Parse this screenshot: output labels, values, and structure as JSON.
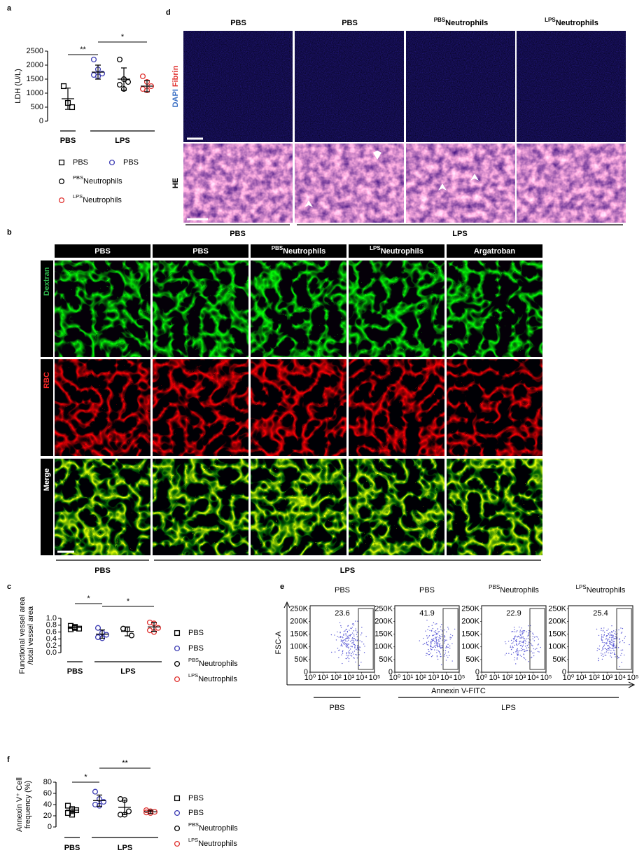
{
  "panel_labels": [
    "a",
    "b",
    "c",
    "d",
    "e",
    "f"
  ],
  "chart_data": [
    {
      "type": "dot",
      "ylabel": [
        "LDH (U/L)"
      ],
      "ylim": [
        0,
        2500
      ],
      "yticks": [
        0,
        500,
        1000,
        1500,
        2000,
        2500
      ],
      "series": [
        {
          "name": "PBS",
          "marker": "square",
          "color": "#000000",
          "values": [
            1250,
            650,
            500
          ],
          "mean": 800,
          "sd": 380
        },
        {
          "name": "PBS",
          "marker": "circle",
          "color": "#3b3bb3",
          "values": [
            2200,
            1850,
            1700,
            1650,
            1600
          ],
          "mean": 1750,
          "sd": 250
        },
        {
          "name": "Neutrophils",
          "name_superscript": "PBS",
          "marker": "circle",
          "color": "#000000",
          "values": [
            2200,
            1500,
            1400,
            1300,
            1150
          ],
          "mean": 1500,
          "sd": 400
        },
        {
          "name": "Neutrophils",
          "name_superscript": "LPS",
          "marker": "circle",
          "color": "#e0312f",
          "values": [
            1600,
            1400,
            1250,
            1150,
            1100
          ],
          "mean": 1250,
          "sd": 200
        }
      ],
      "groups": [
        {
          "label": "PBS",
          "from": 0,
          "to": 0
        },
        {
          "label": "LPS",
          "from": 1,
          "to": 3
        }
      ],
      "significance": [
        {
          "label": "**",
          "from": 0,
          "to": 1
        },
        {
          "label": "*",
          "from": 1,
          "to": 3
        }
      ]
    },
    {
      "type": "dot",
      "ylabel": [
        "Functional vessel area",
        "/total  vessel area"
      ],
      "ylim": [
        0,
        1
      ],
      "yticks": [
        {
          "value": 0,
          "label": "0.0"
        },
        0.2,
        0.4,
        0.6,
        0.8,
        {
          "value": 1,
          "label": "1.0"
        }
      ],
      "series": [
        {
          "name": "PBS",
          "marker": "square",
          "color": "#000000",
          "values": [
            0.78,
            0.72,
            0.7,
            0.68,
            0.75
          ],
          "mean": 0.73,
          "sd": 0.05
        },
        {
          "name": "PBS",
          "marker": "circle",
          "color": "#3b3bb3",
          "values": [
            0.72,
            0.58,
            0.52,
            0.45,
            0.42
          ],
          "mean": 0.54,
          "sd": 0.12
        },
        {
          "name": "Neutrophils",
          "name_superscript": "PBS",
          "marker": "circle",
          "color": "#000000",
          "values": [
            0.7,
            0.68,
            0.5
          ],
          "mean": 0.62,
          "sd": 0.13
        },
        {
          "name": "Neutrophils",
          "name_superscript": "LPS",
          "marker": "circle",
          "color": "#e0312f",
          "values": [
            0.88,
            0.85,
            0.72,
            0.65,
            0.6
          ],
          "mean": 0.75,
          "sd": 0.13
        }
      ],
      "groups": [
        {
          "label": "PBS",
          "from": 0,
          "to": 0
        },
        {
          "label": "LPS",
          "from": 1,
          "to": 3
        }
      ],
      "significance": [
        {
          "label": "*",
          "from": 0,
          "to": 1
        },
        {
          "label": "*",
          "from": 1,
          "to": 3
        }
      ]
    },
    {
      "type": "dot",
      "ylabel": [
        "Annexin V⁺ Cell",
        "frequency (%)"
      ],
      "ylim": [
        0,
        80
      ],
      "yticks": [
        0,
        20,
        40,
        60,
        80
      ],
      "series": [
        {
          "name": "PBS",
          "marker": "square",
          "color": "#000000",
          "values": [
            38,
            32,
            30,
            25,
            22
          ],
          "mean": 30,
          "sd": 6
        },
        {
          "name": "PBS",
          "marker": "circle",
          "color": "#3b3bb3",
          "values": [
            63,
            50,
            45,
            40,
            38
          ],
          "mean": 47,
          "sd": 10
        },
        {
          "name": "Neutrophils",
          "name_superscript": "PBS",
          "marker": "circle",
          "color": "#000000",
          "values": [
            50,
            48,
            28,
            22,
            22
          ],
          "mean": 35,
          "sd": 13
        },
        {
          "name": "Neutrophils",
          "name_superscript": "LPS",
          "marker": "circle",
          "color": "#e0312f",
          "values": [
            30,
            28,
            27,
            26,
            25
          ],
          "mean": 27,
          "sd": 3
        }
      ],
      "groups": [
        {
          "label": "PBS",
          "from": 0,
          "to": 0
        },
        {
          "label": "LPS",
          "from": 1,
          "to": 3
        }
      ],
      "significance": [
        {
          "label": "*",
          "from": 0,
          "to": 1
        },
        {
          "label": "**",
          "from": 1,
          "to": 3
        }
      ]
    }
  ],
  "figure_b": {
    "columns": [
      {
        "text": "PBS"
      },
      {
        "text": "PBS"
      },
      {
        "sup": "PBS",
        "text": "Neutrophils"
      },
      {
        "sup": "LPS",
        "text": "Neutrophils"
      },
      {
        "text": "Argatroban"
      }
    ],
    "rows": [
      "Dextran",
      "RBC",
      "Merge"
    ],
    "groups": [
      {
        "label": "PBS",
        "from": 0,
        "to": 0
      },
      {
        "label": "LPS",
        "from": 1,
        "to": 4
      }
    ]
  },
  "figure_d": {
    "columns": [
      {
        "text": "PBS"
      },
      {
        "text": "PBS"
      },
      {
        "sup": "PBS",
        "text": "Neutrophils"
      },
      {
        "sup": "LPS",
        "text": "Neutrophils"
      }
    ],
    "rows": [
      [
        "DAPI",
        "Fibrin"
      ],
      [
        "HE"
      ]
    ],
    "groups": [
      {
        "label": "PBS",
        "from": 0,
        "to": 0
      },
      {
        "label": "LPS",
        "from": 1,
        "to": 3
      }
    ]
  },
  "figure_e": {
    "columns": [
      {
        "text": "PBS"
      },
      {
        "text": "PBS"
      },
      {
        "sup": "PBS",
        "text": "Neutrophils"
      },
      {
        "sup": "LPS",
        "text": "Neutrophils"
      }
    ],
    "gate_values": [
      23.6,
      41.9,
      22.9,
      25.4
    ],
    "ylabel": "FSC-A",
    "xlabel": "Annexin V-FITC",
    "xscale": "log",
    "xlim": [
      1,
      100000
    ],
    "ylim": [
      0,
      262144
    ],
    "xticks": [
      {
        "value": 1,
        "label": "10⁰"
      },
      {
        "value": 10,
        "label": "10¹"
      },
      {
        "value": 100,
        "label": "10²"
      },
      {
        "value": 1000,
        "label": "10³"
      },
      {
        "value": 10000,
        "label": "10⁴"
      },
      {
        "value": 100000,
        "label": "10⁵"
      }
    ],
    "yticks": [
      0,
      {
        "value": 50000,
        "label": "50K"
      },
      {
        "value": 100000,
        "label": "100K"
      },
      {
        "value": 150000,
        "label": "150K"
      },
      {
        "value": 200000,
        "label": "200K"
      },
      {
        "value": 250000,
        "label": "250K"
      }
    ],
    "groups": [
      {
        "label": "PBS",
        "from": 0,
        "to": 0
      },
      {
        "label": "LPS",
        "from": 1,
        "to": 3
      }
    ]
  }
}
